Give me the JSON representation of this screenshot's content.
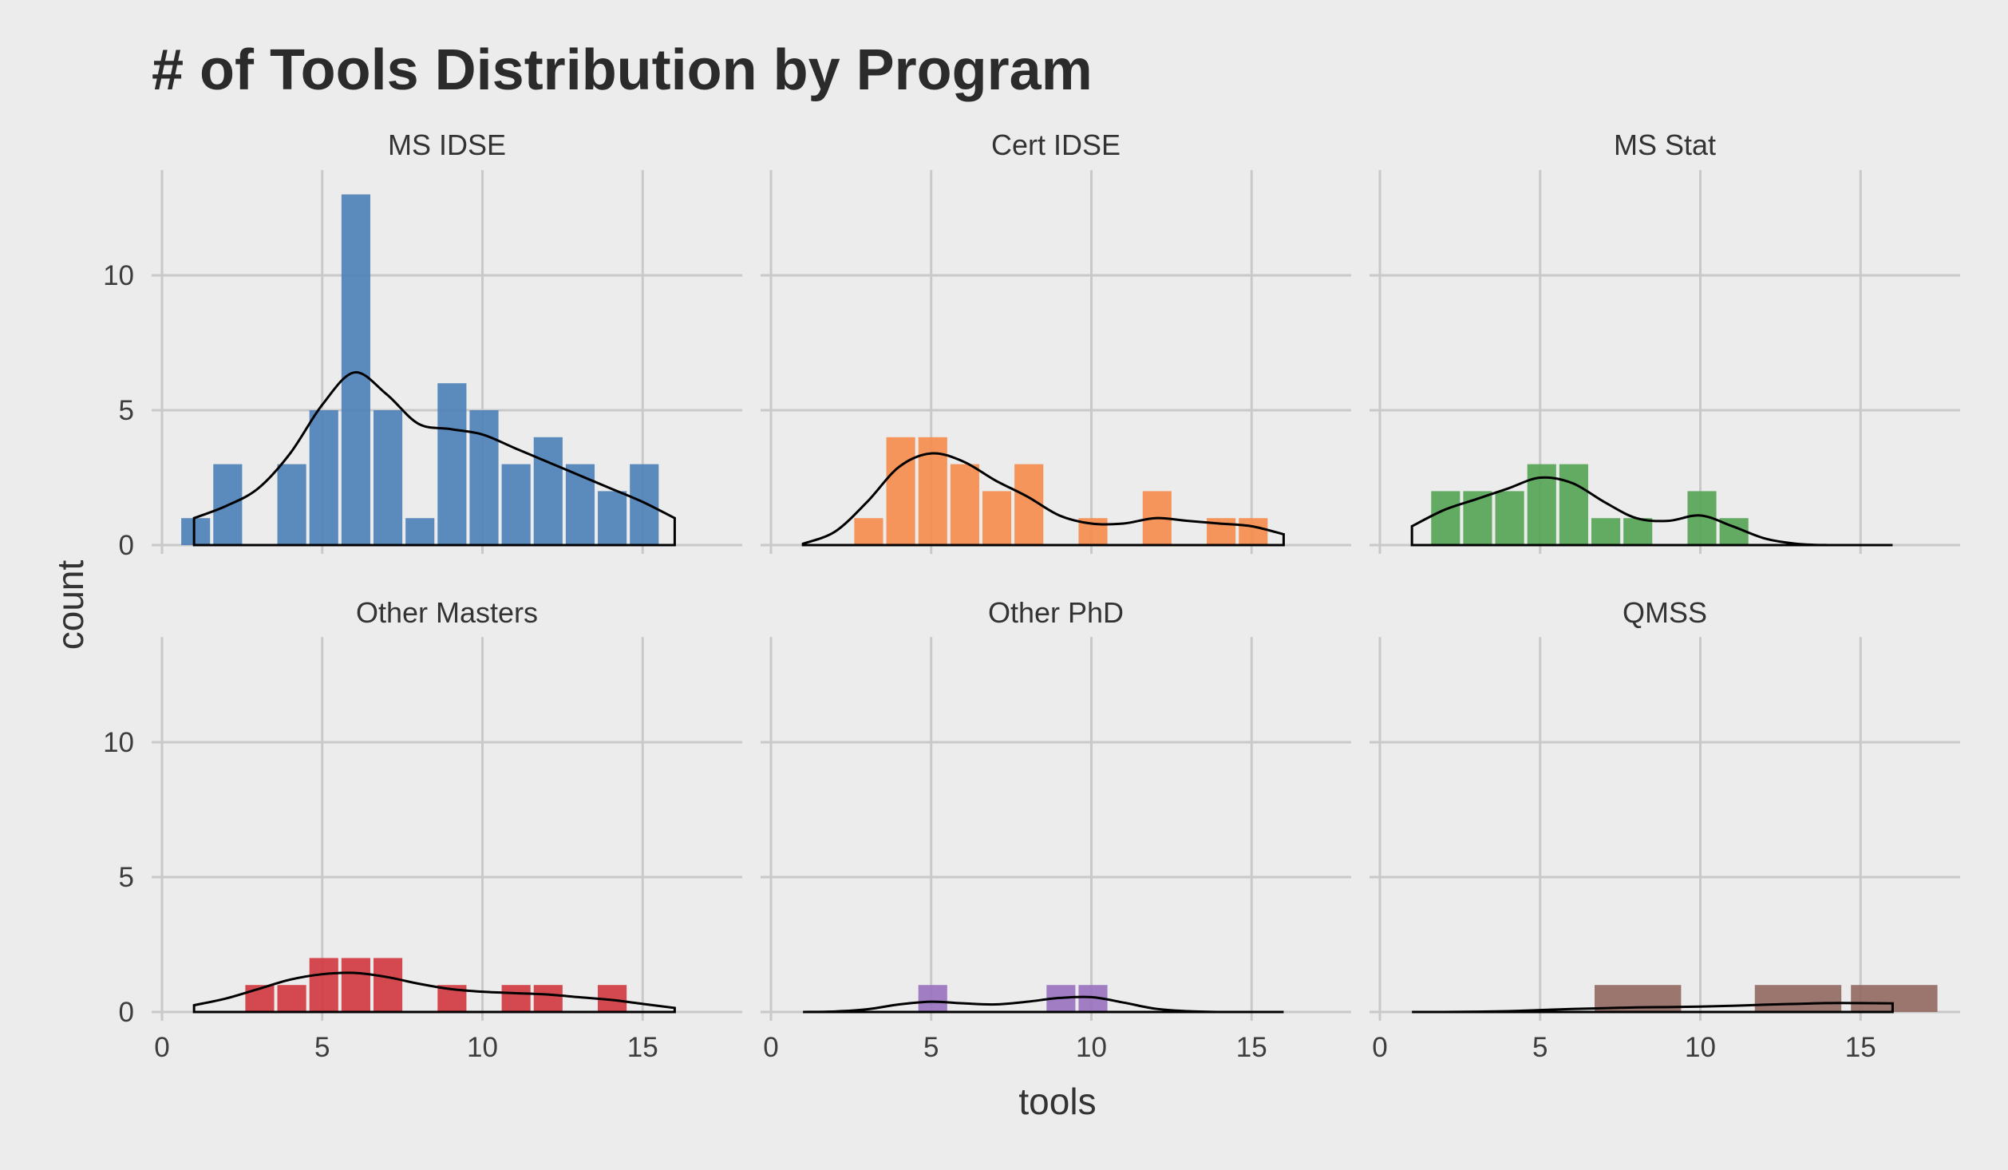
{
  "chart_data": {
    "type": "histogram",
    "title": "# of Tools Distribution by Program",
    "xlabel": "tools",
    "ylabel": "count",
    "xlim": [
      0,
      17.5
    ],
    "ylim": [
      0,
      13
    ],
    "x_ticks": [
      0,
      5,
      10,
      15
    ],
    "y_ticks": [
      0,
      5,
      10
    ],
    "grid": true,
    "legend": "none",
    "panels": [
      {
        "name": "MS IDSE",
        "color": "#4e81b8",
        "bars": [
          {
            "x0": 0.6,
            "x1": 1.5,
            "y": 1
          },
          {
            "x0": 1.6,
            "x1": 2.5,
            "y": 3
          },
          {
            "x0": 3.6,
            "x1": 4.5,
            "y": 3
          },
          {
            "x0": 4.6,
            "x1": 5.5,
            "y": 5
          },
          {
            "x0": 5.6,
            "x1": 6.5,
            "y": 13
          },
          {
            "x0": 6.6,
            "x1": 7.5,
            "y": 5
          },
          {
            "x0": 7.6,
            "x1": 8.5,
            "y": 1
          },
          {
            "x0": 8.6,
            "x1": 9.5,
            "y": 6
          },
          {
            "x0": 9.6,
            "x1": 10.5,
            "y": 5
          },
          {
            "x0": 10.6,
            "x1": 11.5,
            "y": 3
          },
          {
            "x0": 11.6,
            "x1": 12.5,
            "y": 4
          },
          {
            "x0": 12.6,
            "x1": 13.5,
            "y": 3
          },
          {
            "x0": 13.6,
            "x1": 14.5,
            "y": 2
          },
          {
            "x0": 14.6,
            "x1": 15.5,
            "y": 3
          }
        ],
        "density": [
          [
            1,
            1
          ],
          [
            2,
            1.45
          ],
          [
            3,
            2.1
          ],
          [
            4,
            3.4
          ],
          [
            5,
            5.2
          ],
          [
            6,
            6.4
          ],
          [
            7,
            5.6
          ],
          [
            8,
            4.5
          ],
          [
            9,
            4.3
          ],
          [
            10,
            4.1
          ],
          [
            11,
            3.6
          ],
          [
            12,
            3.1
          ],
          [
            13,
            2.6
          ],
          [
            14,
            2.1
          ],
          [
            15,
            1.6
          ],
          [
            16,
            1
          ]
        ]
      },
      {
        "name": "Cert IDSE",
        "color": "#f58d4e",
        "bars": [
          {
            "x0": 2.6,
            "x1": 3.5,
            "y": 1
          },
          {
            "x0": 3.6,
            "x1": 4.5,
            "y": 4
          },
          {
            "x0": 4.6,
            "x1": 5.5,
            "y": 4
          },
          {
            "x0": 5.6,
            "x1": 6.5,
            "y": 3
          },
          {
            "x0": 6.6,
            "x1": 7.5,
            "y": 2
          },
          {
            "x0": 7.6,
            "x1": 8.5,
            "y": 3
          },
          {
            "x0": 9.6,
            "x1": 10.5,
            "y": 1
          },
          {
            "x0": 11.6,
            "x1": 12.5,
            "y": 2
          },
          {
            "x0": 13.6,
            "x1": 14.5,
            "y": 1
          },
          {
            "x0": 14.6,
            "x1": 15.5,
            "y": 1
          }
        ],
        "density": [
          [
            1,
            0.05
          ],
          [
            2,
            0.5
          ],
          [
            3,
            1.6
          ],
          [
            4,
            2.9
          ],
          [
            5,
            3.4
          ],
          [
            6,
            3.1
          ],
          [
            7,
            2.4
          ],
          [
            8,
            1.8
          ],
          [
            9,
            1.1
          ],
          [
            10,
            0.8
          ],
          [
            11,
            0.8
          ],
          [
            12,
            1
          ],
          [
            13,
            0.9
          ],
          [
            14,
            0.8
          ],
          [
            15,
            0.7
          ],
          [
            16,
            0.4
          ]
        ]
      },
      {
        "name": "MS Stat",
        "color": "#57a556",
        "bars": [
          {
            "x0": 1.6,
            "x1": 2.5,
            "y": 2
          },
          {
            "x0": 2.6,
            "x1": 3.5,
            "y": 2
          },
          {
            "x0": 3.6,
            "x1": 4.5,
            "y": 2
          },
          {
            "x0": 4.6,
            "x1": 5.5,
            "y": 3
          },
          {
            "x0": 5.6,
            "x1": 6.5,
            "y": 3
          },
          {
            "x0": 6.6,
            "x1": 7.5,
            "y": 1
          },
          {
            "x0": 7.6,
            "x1": 8.5,
            "y": 1
          },
          {
            "x0": 9.6,
            "x1": 10.5,
            "y": 2
          },
          {
            "x0": 10.6,
            "x1": 11.5,
            "y": 1
          }
        ],
        "density": [
          [
            1,
            0.7
          ],
          [
            2,
            1.3
          ],
          [
            3,
            1.7
          ],
          [
            4,
            2.1
          ],
          [
            5,
            2.5
          ],
          [
            6,
            2.3
          ],
          [
            7,
            1.6
          ],
          [
            8,
            1
          ],
          [
            9,
            0.9
          ],
          [
            10,
            1.1
          ],
          [
            11,
            0.7
          ],
          [
            12,
            0.25
          ],
          [
            13,
            0.05
          ],
          [
            14,
            0
          ],
          [
            15,
            0
          ],
          [
            16,
            0
          ]
        ]
      },
      {
        "name": "Other Masters",
        "color": "#d13b41",
        "bars": [
          {
            "x0": 2.6,
            "x1": 3.5,
            "y": 1
          },
          {
            "x0": 3.6,
            "x1": 4.5,
            "y": 1
          },
          {
            "x0": 4.6,
            "x1": 5.5,
            "y": 2
          },
          {
            "x0": 5.6,
            "x1": 6.5,
            "y": 2
          },
          {
            "x0": 6.6,
            "x1": 7.5,
            "y": 2
          },
          {
            "x0": 8.6,
            "x1": 9.5,
            "y": 1
          },
          {
            "x0": 10.6,
            "x1": 11.5,
            "y": 1
          },
          {
            "x0": 11.6,
            "x1": 12.5,
            "y": 1
          },
          {
            "x0": 13.6,
            "x1": 14.5,
            "y": 1
          }
        ],
        "density": [
          [
            1,
            0.25
          ],
          [
            2,
            0.5
          ],
          [
            3,
            0.85
          ],
          [
            4,
            1.2
          ],
          [
            5,
            1.4
          ],
          [
            6,
            1.45
          ],
          [
            7,
            1.3
          ],
          [
            8,
            1.05
          ],
          [
            9,
            0.85
          ],
          [
            10,
            0.75
          ],
          [
            11,
            0.7
          ],
          [
            12,
            0.65
          ],
          [
            13,
            0.55
          ],
          [
            14,
            0.45
          ],
          [
            15,
            0.3
          ],
          [
            16,
            0.15
          ]
        ]
      },
      {
        "name": "Other PhD",
        "color": "#9a74bf",
        "bars": [
          {
            "x0": 4.6,
            "x1": 5.5,
            "y": 1
          },
          {
            "x0": 8.6,
            "x1": 9.5,
            "y": 1
          },
          {
            "x0": 9.6,
            "x1": 10.5,
            "y": 1
          }
        ],
        "density": [
          [
            1,
            0
          ],
          [
            2,
            0.02
          ],
          [
            3,
            0.1
          ],
          [
            4,
            0.28
          ],
          [
            5,
            0.38
          ],
          [
            6,
            0.32
          ],
          [
            7,
            0.28
          ],
          [
            8,
            0.38
          ],
          [
            9,
            0.52
          ],
          [
            10,
            0.55
          ],
          [
            11,
            0.35
          ],
          [
            12,
            0.12
          ],
          [
            13,
            0.03
          ],
          [
            14,
            0
          ],
          [
            15,
            0
          ],
          [
            16,
            0
          ]
        ]
      },
      {
        "name": "QMSS",
        "color": "#936b63",
        "bars": [
          {
            "x0": 6.7,
            "x1": 9.4,
            "y": 1
          },
          {
            "x0": 11.7,
            "x1": 14.4,
            "y": 1
          },
          {
            "x0": 14.7,
            "x1": 17.4,
            "y": 1
          }
        ],
        "density": [
          [
            1,
            0
          ],
          [
            2,
            0
          ],
          [
            3,
            0.01
          ],
          [
            4,
            0.03
          ],
          [
            5,
            0.07
          ],
          [
            6,
            0.11
          ],
          [
            7,
            0.14
          ],
          [
            8,
            0.17
          ],
          [
            9,
            0.18
          ],
          [
            10,
            0.2
          ],
          [
            11,
            0.23
          ],
          [
            12,
            0.27
          ],
          [
            13,
            0.3
          ],
          [
            14,
            0.33
          ],
          [
            15,
            0.33
          ],
          [
            16,
            0.32
          ]
        ]
      }
    ]
  }
}
